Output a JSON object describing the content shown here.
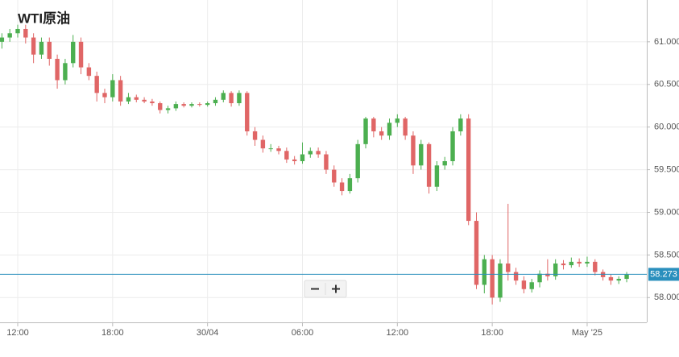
{
  "chart_data": {
    "type": "candlestick",
    "title": "WTI原油",
    "x": [
      11.0,
      11.5,
      12.0,
      12.5,
      13.0,
      13.5,
      14.0,
      14.5,
      15.0,
      15.5,
      16.0,
      16.5,
      17.0,
      17.5,
      18.0,
      18.5,
      19.0,
      19.5,
      20.0,
      20.5,
      21.0,
      21.5,
      22.0,
      22.5,
      23.0,
      23.5,
      24.0,
      24.5,
      25.0,
      25.5,
      26.0,
      26.5,
      27.0,
      27.5,
      28.0,
      28.5,
      29.0,
      29.5,
      30.0,
      30.5,
      31.0,
      31.5,
      32.0,
      32.5,
      33.0,
      33.5,
      34.0,
      34.5,
      35.0,
      35.5,
      36.0,
      36.5,
      37.0,
      37.5,
      38.0,
      38.5,
      39.0,
      39.5,
      40.0,
      40.5,
      41.0,
      41.5,
      42.0,
      42.5,
      43.0,
      43.5,
      44.0,
      44.5,
      45.0,
      45.5,
      46.0,
      46.5,
      47.0,
      47.5,
      48.0,
      48.5,
      49.0,
      49.5,
      50.0,
      50.5
    ],
    "open": [
      61.0,
      61.05,
      61.1,
      61.15,
      61.05,
      60.85,
      61.0,
      60.8,
      60.55,
      60.75,
      61.0,
      60.7,
      60.6,
      60.4,
      60.35,
      60.55,
      60.3,
      60.35,
      60.32,
      60.3,
      60.28,
      60.2,
      60.22,
      60.27,
      60.25,
      60.27,
      60.26,
      60.28,
      60.32,
      60.4,
      60.28,
      60.4,
      59.95,
      59.85,
      59.75,
      59.75,
      59.72,
      59.62,
      59.6,
      59.68,
      59.72,
      59.68,
      59.5,
      59.35,
      59.25,
      59.4,
      59.8,
      60.1,
      59.95,
      59.9,
      60.05,
      60.1,
      59.9,
      59.55,
      59.8,
      59.3,
      59.55,
      59.6,
      59.95,
      60.1,
      58.9,
      58.15,
      58.45,
      58.0,
      58.4,
      58.3,
      58.2,
      58.1,
      58.18,
      58.28,
      58.25,
      58.4,
      58.38,
      58.42,
      58.4,
      58.42,
      58.3,
      58.24,
      58.2,
      58.22
    ],
    "high": [
      61.1,
      61.15,
      61.2,
      61.2,
      61.1,
      61.05,
      61.05,
      60.85,
      60.8,
      61.08,
      61.05,
      60.75,
      60.65,
      60.45,
      60.62,
      60.6,
      60.4,
      60.38,
      60.35,
      60.33,
      60.3,
      60.25,
      60.3,
      60.29,
      60.29,
      60.29,
      60.3,
      60.35,
      60.43,
      60.42,
      60.43,
      60.42,
      60.0,
      59.9,
      59.8,
      59.78,
      59.76,
      59.66,
      59.82,
      59.76,
      59.76,
      59.72,
      59.55,
      59.4,
      59.45,
      59.85,
      60.12,
      60.12,
      60.0,
      60.1,
      60.15,
      60.12,
      59.95,
      59.85,
      59.82,
      59.6,
      59.65,
      60.0,
      60.15,
      60.15,
      59.0,
      58.5,
      58.5,
      58.45,
      59.1,
      58.35,
      58.25,
      58.22,
      58.32,
      58.45,
      58.45,
      58.44,
      58.47,
      58.46,
      58.48,
      58.45,
      58.33,
      58.27,
      58.25,
      58.3
    ],
    "low": [
      60.92,
      61.0,
      61.05,
      60.98,
      60.75,
      60.8,
      60.72,
      60.45,
      60.5,
      60.7,
      60.62,
      60.55,
      60.3,
      60.28,
      60.3,
      60.25,
      60.27,
      60.29,
      60.28,
      60.25,
      60.16,
      60.16,
      60.19,
      60.23,
      60.23,
      60.24,
      60.24,
      60.25,
      60.29,
      60.24,
      60.25,
      59.9,
      59.78,
      59.7,
      59.71,
      59.68,
      59.58,
      59.56,
      59.57,
      59.64,
      59.64,
      59.45,
      59.3,
      59.2,
      59.22,
      59.35,
      59.75,
      59.88,
      59.85,
      59.85,
      60.0,
      59.85,
      59.45,
      59.5,
      59.22,
      59.25,
      59.5,
      59.55,
      59.9,
      58.85,
      58.1,
      58.05,
      57.92,
      57.95,
      58.2,
      58.15,
      58.05,
      58.06,
      58.12,
      58.2,
      58.21,
      58.33,
      58.35,
      58.36,
      58.36,
      58.26,
      58.2,
      58.15,
      58.16,
      58.18
    ],
    "close": [
      61.05,
      61.1,
      61.15,
      61.05,
      60.85,
      61.0,
      60.8,
      60.55,
      60.75,
      61.0,
      60.7,
      60.6,
      60.4,
      60.35,
      60.55,
      60.3,
      60.35,
      60.32,
      60.3,
      60.28,
      60.2,
      60.22,
      60.27,
      60.25,
      60.27,
      60.26,
      60.28,
      60.32,
      60.4,
      60.28,
      60.4,
      59.95,
      59.85,
      59.75,
      59.75,
      59.72,
      59.62,
      59.6,
      59.68,
      59.72,
      59.68,
      59.5,
      59.35,
      59.25,
      59.4,
      59.8,
      60.1,
      59.95,
      59.9,
      60.05,
      60.1,
      59.9,
      59.55,
      59.8,
      59.3,
      59.55,
      59.6,
      59.95,
      60.1,
      58.9,
      58.15,
      58.45,
      58.0,
      58.4,
      58.3,
      58.2,
      58.1,
      58.18,
      58.28,
      58.25,
      58.4,
      58.38,
      58.42,
      58.4,
      58.42,
      58.3,
      58.24,
      58.2,
      58.22,
      58.27
    ],
    "up_color": "#4caf50",
    "down_color": "#e06666",
    "xlim": [
      10.88,
      51.77
    ],
    "xticks": [
      {
        "value": 12,
        "label": "12:00"
      },
      {
        "value": 18,
        "label": "18:00"
      },
      {
        "value": 24,
        "label": "30/04"
      },
      {
        "value": 30,
        "label": "06:00"
      },
      {
        "value": 36,
        "label": "12:00"
      },
      {
        "value": 42,
        "label": "18:00"
      },
      {
        "value": 48,
        "label": "May '25"
      }
    ],
    "ylim": [
      57.71,
      61.49
    ],
    "yticks": [
      {
        "value": 58,
        "label": "58.000"
      },
      {
        "value": 58.5,
        "label": "58.500"
      },
      {
        "value": 59,
        "label": "59.000"
      },
      {
        "value": 59.5,
        "label": "59.500"
      },
      {
        "value": 60,
        "label": "60.000"
      },
      {
        "value": 60.5,
        "label": "60.500"
      },
      {
        "value": 61,
        "label": "61.000"
      }
    ],
    "grid": true,
    "last_price": 58.273,
    "last_price_color": "#2a8fbd"
  }
}
